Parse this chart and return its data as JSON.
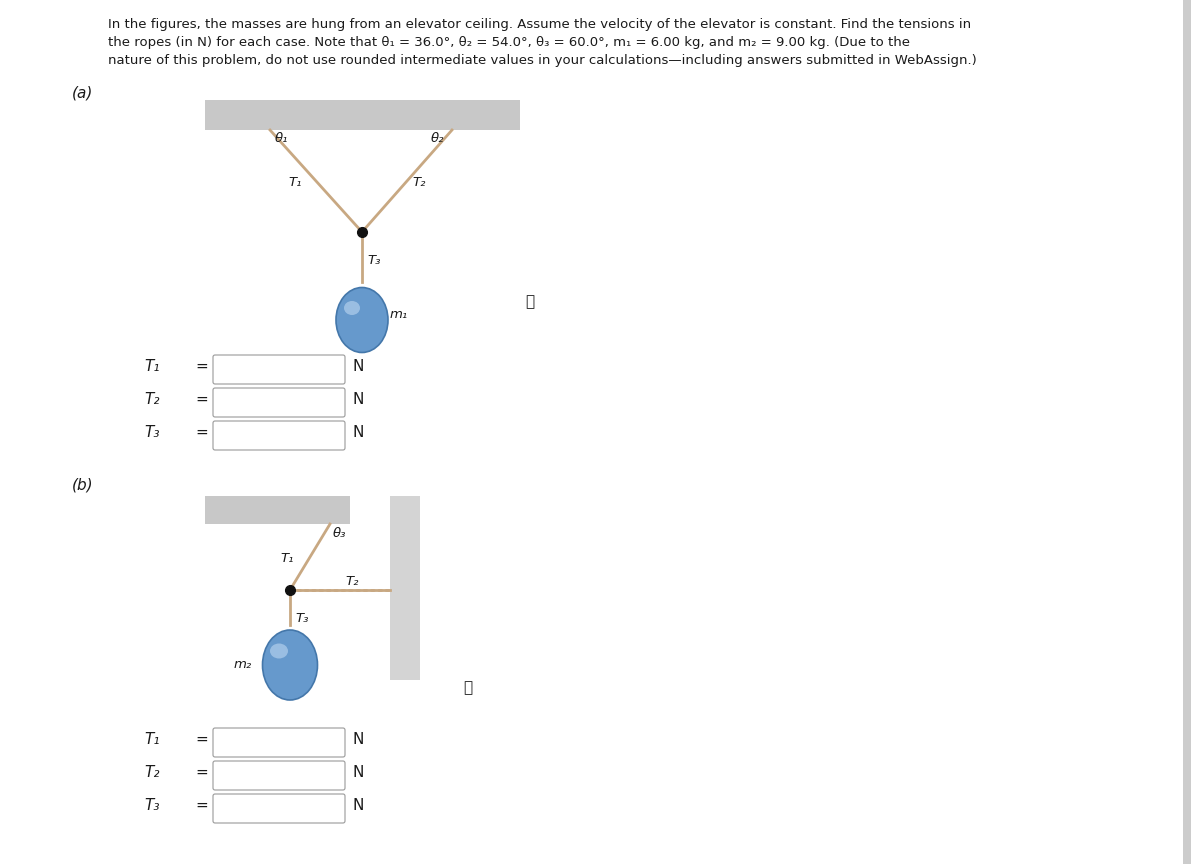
{
  "bg_color": "#ffffff",
  "ceiling_color": "#c8c8c8",
  "ceiling_gradient_top": "#e8e8e8",
  "rope_color": "#c8a882",
  "wall_color": "#d4d4d4",
  "blob_color_face": "#6699cc",
  "blob_color_edge": "#4477aa",
  "node_color": "#111111",
  "box_color": "#ffffff",
  "box_edge": "#999999",
  "text_color": "#1a1a1a",
  "label_a": "(a)",
  "label_b": "(b)",
  "theta1_label": "θ₁",
  "theta2_label": "θ₂",
  "theta3_label": "θ₃",
  "T1_label": "T₁",
  "T2_label": "T₂",
  "T3_label": "T₃",
  "m1_label": "m₁",
  "m2_label": "m₂",
  "N_label": "N",
  "eq_label": "=",
  "info_symbol": "ⓘ",
  "title_line1": "In the figures, the masses are hung from an elevator ceiling. Assume the velocity of the elevator is constant. Find the tensions in",
  "title_line2": "the ropes (in N) for each case. Note that θ₁ = 36.0°, θ₂ = 54.0°, θ₃ = 60.0°, m₁ = 6.00 kg, and m₂ = 9.00 kg. (Due to the",
  "title_line3": "nature of this problem, do not use rounded intermediate values in your calculations—including answers submitted in WebAssign.)"
}
